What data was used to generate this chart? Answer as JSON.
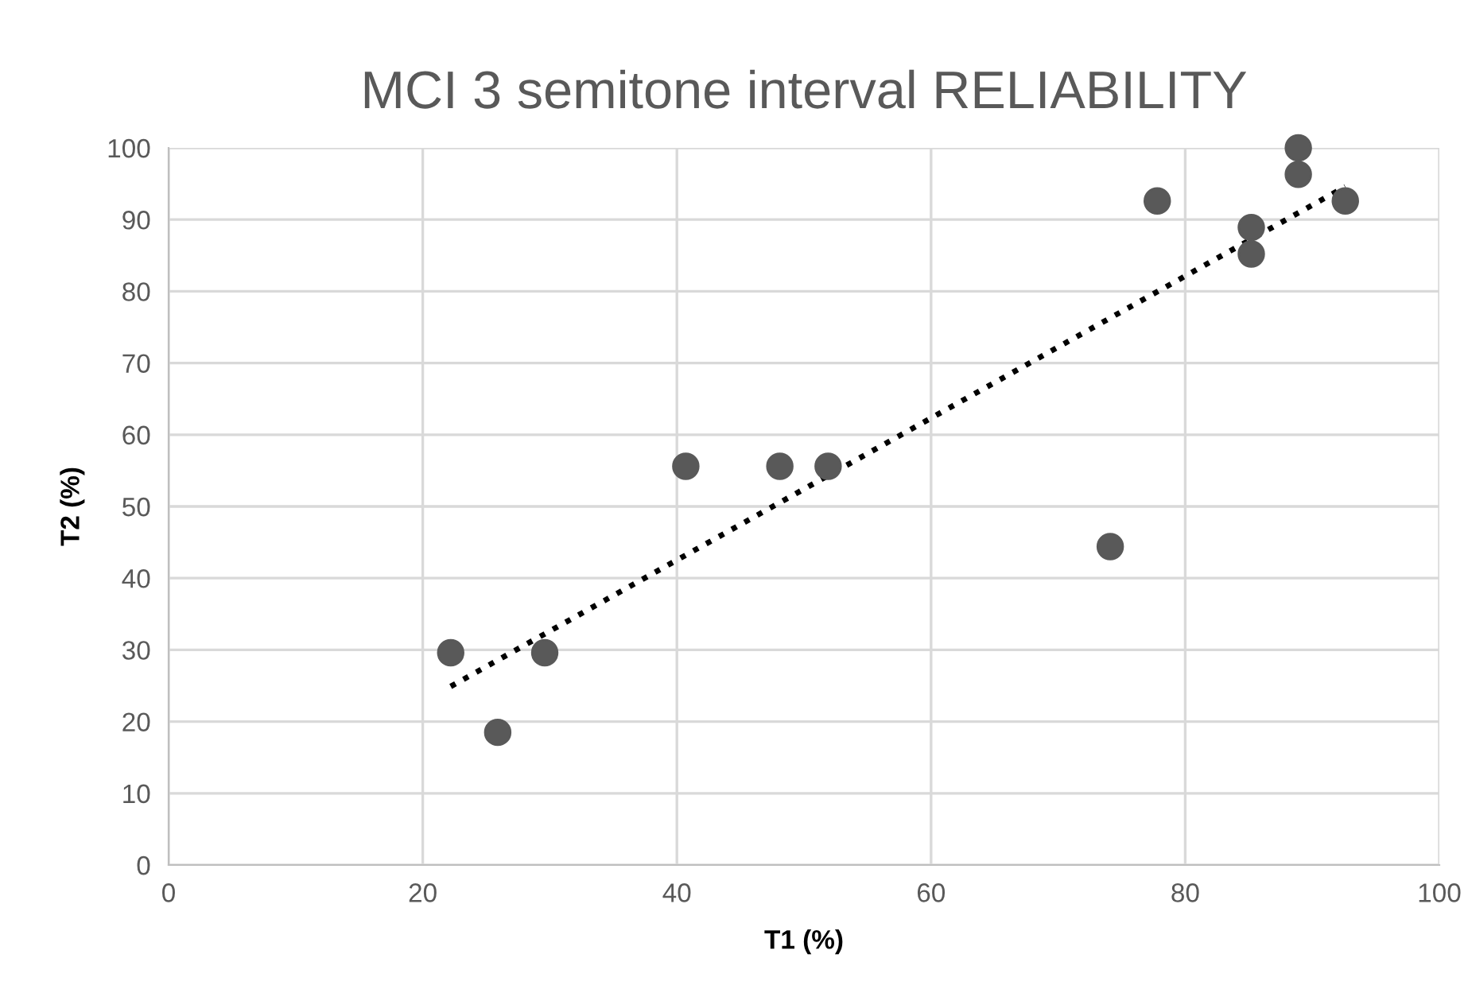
{
  "chart_data": {
    "type": "scatter",
    "title": "MCI 3 semitone interval RELIABILITY",
    "xlabel": "T1 (%)",
    "ylabel": "T2 (%)",
    "series": [
      {
        "color": "#595959",
        "marker": "circle",
        "x": [
          22.2,
          25.9,
          29.6,
          40.7,
          48.1,
          51.9,
          74.1,
          77.8,
          85.2,
          85.2,
          88.9,
          88.9,
          92.6
        ],
        "values": [
          29.6,
          18.5,
          29.6,
          55.6,
          55.6,
          55.6,
          44.4,
          92.6,
          88.9,
          85.2,
          100,
          96.3,
          92.6
        ]
      },
      {
        "type": "line",
        "color": "#000000",
        "line_style": "dotted",
        "marker": "none",
        "x": [
          22.2,
          92.6
        ],
        "values": [
          24.9,
          94.6
        ]
      }
    ],
    "xlim": [
      0,
      100
    ],
    "ylim": [
      0,
      100
    ],
    "xticks": [
      0,
      20,
      40,
      60,
      80,
      100
    ],
    "yticks": [
      0,
      10,
      20,
      30,
      40,
      50,
      60,
      70,
      80,
      90,
      100
    ],
    "grid": true
  }
}
